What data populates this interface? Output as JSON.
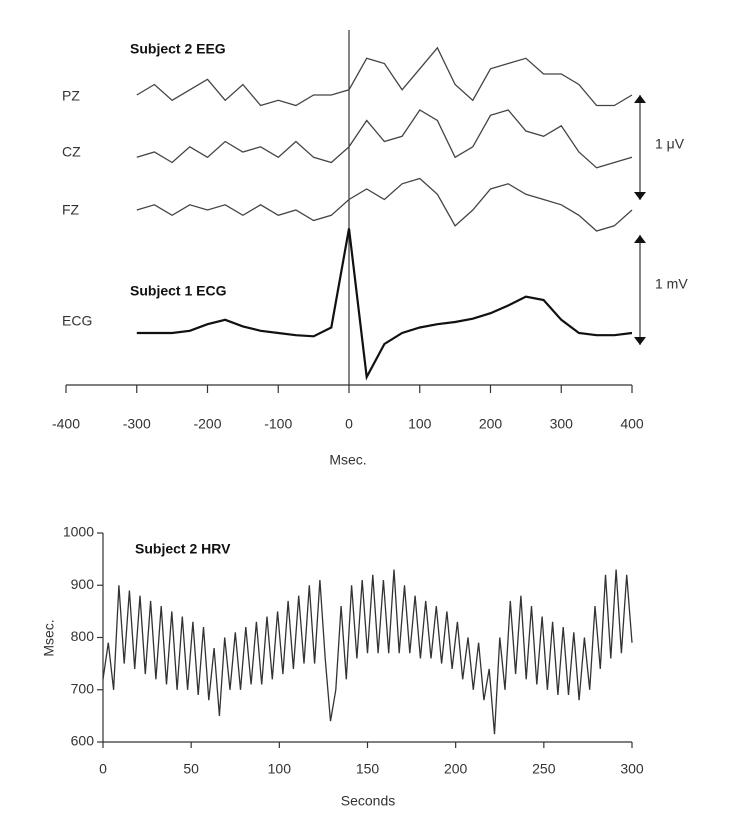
{
  "chart_data": [
    {
      "type": "line",
      "title": "Subject 2 EEG",
      "subtitle": "Subject 1 ECG",
      "x_label": "Msec.",
      "xlim": [
        -400,
        400
      ],
      "xticks": [
        -400,
        -300,
        -200,
        -100,
        0,
        100,
        200,
        300,
        400
      ],
      "x": [
        -300,
        -275,
        -250,
        -225,
        -200,
        -175,
        -150,
        -125,
        -100,
        -75,
        -50,
        -25,
        0,
        25,
        50,
        75,
        100,
        125,
        150,
        175,
        200,
        225,
        250,
        275,
        300,
        325,
        350,
        375,
        400
      ],
      "series": [
        {
          "name": "PZ",
          "color": "#444444",
          "values": [
            0,
            0.1,
            -0.05,
            0.05,
            0.15,
            -0.05,
            0.1,
            -0.1,
            -0.05,
            -0.1,
            0,
            0,
            0.05,
            0.35,
            0.3,
            0.05,
            0.25,
            0.45,
            0.1,
            -0.05,
            0.25,
            0.3,
            0.35,
            0.2,
            0.2,
            0.1,
            -0.1,
            -0.1,
            0
          ]
        },
        {
          "name": "CZ",
          "color": "#444444",
          "values": [
            -0.05,
            0,
            -0.1,
            0.05,
            -0.05,
            0.1,
            0,
            0.05,
            -0.05,
            0.1,
            -0.05,
            -0.1,
            0.05,
            0.3,
            0.1,
            0.15,
            0.4,
            0.3,
            -0.05,
            0.05,
            0.35,
            0.4,
            0.2,
            0.15,
            0.25,
            0,
            -0.15,
            -0.1,
            -0.05
          ]
        },
        {
          "name": "FZ",
          "color": "#444444",
          "values": [
            0,
            0.05,
            -0.05,
            0.05,
            0,
            0.05,
            -0.05,
            0.05,
            -0.05,
            0,
            -0.1,
            -0.05,
            0.1,
            0.2,
            0.1,
            0.25,
            0.3,
            0.15,
            -0.15,
            0,
            0.2,
            0.25,
            0.15,
            0.1,
            0.05,
            -0.05,
            -0.2,
            -0.15,
            0
          ]
        },
        {
          "name": "ECG",
          "color": "#111111",
          "values": [
            0,
            0,
            0,
            0.02,
            0.08,
            0.12,
            0.06,
            0.02,
            0,
            -0.02,
            -0.03,
            0.05,
            0.95,
            -0.4,
            -0.1,
            0,
            0.05,
            0.08,
            0.1,
            0.13,
            0.18,
            0.25,
            0.33,
            0.3,
            0.12,
            0,
            -0.02,
            -0.02,
            0
          ]
        }
      ],
      "scale_bars": [
        {
          "value": 1,
          "label": "1 μV"
        },
        {
          "value": 1,
          "label": "1 mV"
        }
      ]
    },
    {
      "type": "line",
      "title": "Subject 2 HRV",
      "x_label": "Seconds",
      "y_label": "Msec.",
      "xlim": [
        0,
        300
      ],
      "xticks": [
        0,
        50,
        100,
        150,
        200,
        250,
        300
      ],
      "ylim": [
        600,
        1000
      ],
      "yticks": [
        600,
        700,
        800,
        900,
        1000
      ],
      "color": "#333333",
      "x": [
        0,
        3,
        6,
        9,
        12,
        15,
        18,
        21,
        24,
        27,
        30,
        33,
        36,
        39,
        42,
        45,
        48,
        51,
        54,
        57,
        60,
        63,
        66,
        69,
        72,
        75,
        78,
        81,
        84,
        87,
        90,
        93,
        96,
        99,
        102,
        105,
        108,
        111,
        114,
        117,
        120,
        123,
        126,
        129,
        132,
        135,
        138,
        141,
        144,
        147,
        150,
        153,
        156,
        159,
        162,
        165,
        168,
        171,
        174,
        177,
        180,
        183,
        186,
        189,
        192,
        195,
        198,
        201,
        204,
        207,
        210,
        213,
        216,
        219,
        222,
        225,
        228,
        231,
        234,
        237,
        240,
        243,
        246,
        249,
        252,
        255,
        258,
        261,
        264,
        267,
        270,
        273,
        276,
        279,
        282,
        285,
        288,
        291,
        294,
        297,
        300
      ],
      "values": [
        720,
        790,
        700,
        900,
        750,
        890,
        740,
        880,
        730,
        870,
        720,
        860,
        710,
        850,
        700,
        840,
        700,
        830,
        690,
        820,
        680,
        780,
        650,
        800,
        700,
        810,
        700,
        820,
        710,
        830,
        710,
        840,
        720,
        850,
        730,
        870,
        740,
        880,
        750,
        900,
        750,
        910,
        760,
        640,
        700,
        860,
        720,
        900,
        760,
        910,
        770,
        920,
        770,
        910,
        770,
        930,
        770,
        900,
        770,
        880,
        760,
        870,
        760,
        860,
        750,
        850,
        740,
        830,
        720,
        800,
        700,
        790,
        680,
        740,
        615,
        800,
        700,
        870,
        730,
        880,
        720,
        860,
        710,
        840,
        700,
        830,
        690,
        820,
        690,
        810,
        680,
        800,
        700,
        860,
        740,
        920,
        760,
        930,
        770,
        920,
        790
      ]
    }
  ]
}
